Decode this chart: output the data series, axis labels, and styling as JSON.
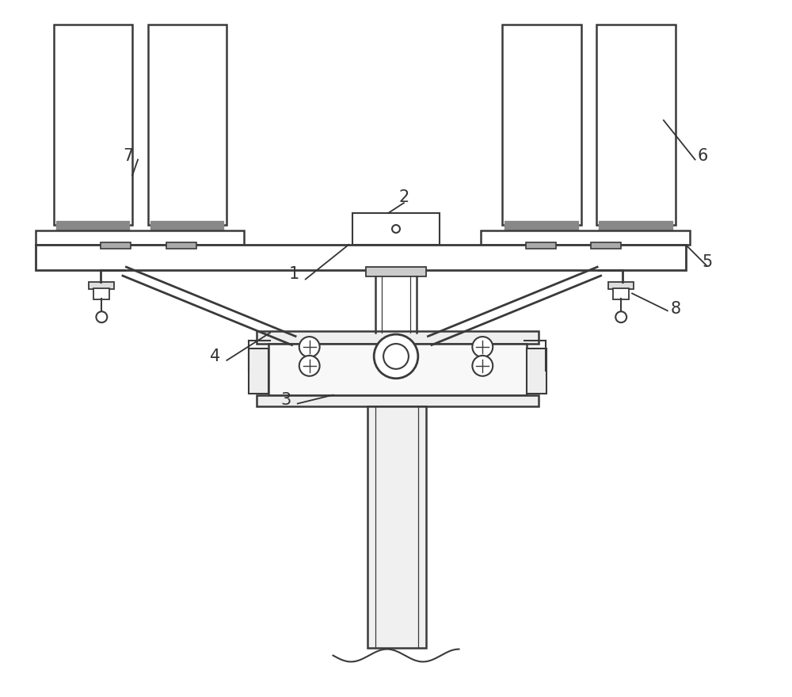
{
  "background_color": "#ffffff",
  "line_color": "#3a3a3a",
  "lw": 1.5,
  "label_fontsize": 15,
  "fig_w": 10.0,
  "fig_h": 8.8
}
